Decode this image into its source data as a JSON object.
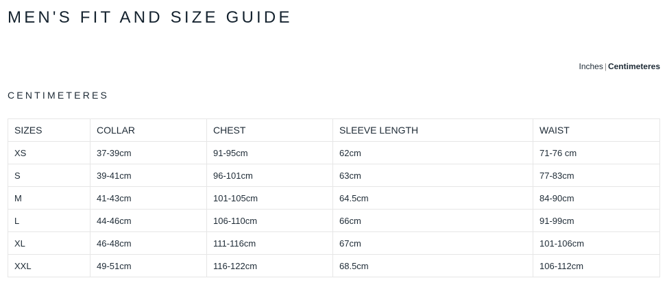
{
  "title": "MEN'S FIT AND SIZE GUIDE",
  "units": {
    "inches": "Inches",
    "separator": "|",
    "centimeters": "Centimeteres",
    "active": "centimeters"
  },
  "section_title": "CENTIMETERES",
  "table": {
    "headers": [
      "SIZES",
      "COLLAR",
      "CHEST",
      "SLEEVE LENGTH",
      "WAIST"
    ],
    "rows": [
      [
        "XS",
        "37-39cm",
        "91-95cm",
        "62cm",
        "71-76 cm"
      ],
      [
        "S",
        "39-41cm",
        "96-101cm",
        "63cm",
        "77-83cm"
      ],
      [
        "M",
        "41-43cm",
        "101-105cm",
        "64.5cm",
        "84-90cm"
      ],
      [
        "L",
        "44-46cm",
        "106-110cm",
        "66cm",
        "91-99cm"
      ],
      [
        "XL",
        "46-48cm",
        "111-116cm",
        "67cm",
        "101-106cm"
      ],
      [
        "XXL",
        "49-51cm",
        "116-122cm",
        "68.5cm",
        "106-112cm"
      ]
    ]
  }
}
